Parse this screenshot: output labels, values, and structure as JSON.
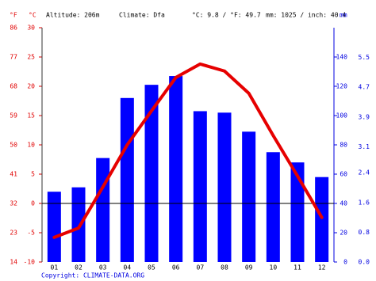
{
  "chart_data": {
    "type": "combo",
    "fahrenheit_label": "°F",
    "ylabel": "°C",
    "y2label": "mm",
    "altitude": "Altitude: 206m",
    "climate": "Climate: Dfa",
    "temperature_summary": "°C: 9.8 / °F: 49.7",
    "precipitation_summary": "mm: 1025 / inch: 40.4",
    "copyright": "Copyright: CLIMATE-DATA.ORG",
    "categories": [
      "01",
      "02",
      "03",
      "04",
      "05",
      "06",
      "07",
      "08",
      "09",
      "10",
      "11",
      "12"
    ],
    "ylim": [
      -10,
      30
    ],
    "yticks": [
      -10,
      -5,
      0,
      5,
      10,
      15,
      20,
      25,
      30
    ],
    "flim": [
      14,
      86
    ],
    "fticks": [
      14,
      23,
      32,
      41,
      50,
      59,
      68,
      77,
      86
    ],
    "y2lim": [
      0,
      160
    ],
    "y2ticks": [
      0,
      20,
      40,
      60,
      80,
      100,
      120,
      140
    ],
    "inchlim": [
      0,
      6.3
    ],
    "inchticks": [
      {
        "value": 0,
        "label": "0.0"
      },
      0.8,
      1.6,
      2.4,
      3.1,
      3.9,
      4.7,
      5.5
    ],
    "series": [
      {
        "type": "bar",
        "axis": "y2",
        "color": "#0000ff",
        "values": [
          48,
          51,
          71,
          112,
          121,
          127,
          103,
          102,
          89,
          75,
          68,
          58
        ]
      },
      {
        "type": "line",
        "axis": "y",
        "color": "#e60000",
        "values": [
          -5.8,
          -4.2,
          2.8,
          10,
          15.8,
          21.5,
          23.8,
          22.6,
          18.8,
          11.6,
          4.7,
          -2.4
        ]
      }
    ]
  }
}
